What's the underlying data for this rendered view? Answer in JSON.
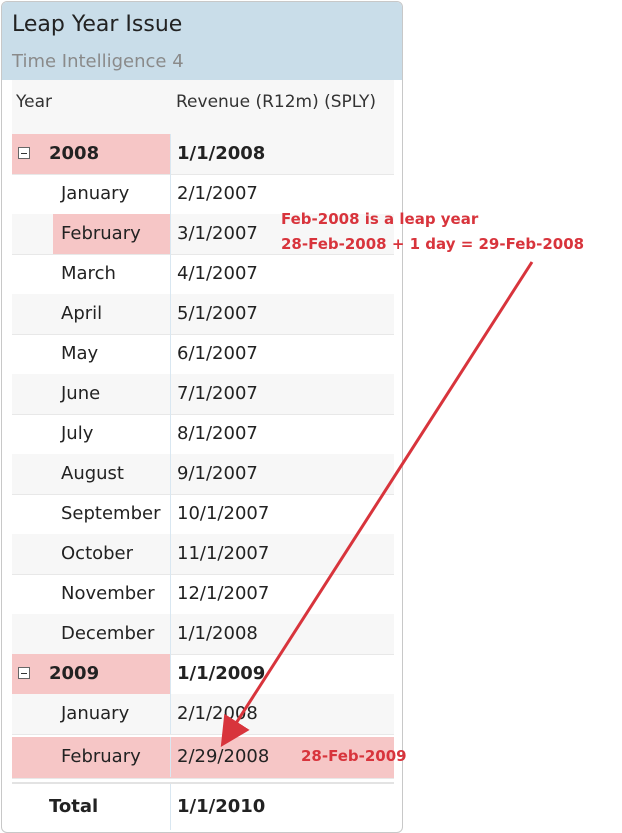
{
  "visual": {
    "title": "Leap Year Issue",
    "subtitle": "Time Intelligence 4"
  },
  "columns": {
    "year": "Year",
    "measure": "Revenue (R12m) (SPLY)"
  },
  "rows": [
    {
      "label": "2008",
      "value": "1/1/2008"
    },
    {
      "label": "January",
      "value": "2/1/2007"
    },
    {
      "label": "February",
      "value": "3/1/2007"
    },
    {
      "label": "March",
      "value": "4/1/2007"
    },
    {
      "label": "April",
      "value": "5/1/2007"
    },
    {
      "label": "May",
      "value": "6/1/2007"
    },
    {
      "label": "June",
      "value": "7/1/2007"
    },
    {
      "label": "July",
      "value": "8/1/2007"
    },
    {
      "label": "August",
      "value": "9/1/2007"
    },
    {
      "label": "September",
      "value": "10/1/2007"
    },
    {
      "label": "October",
      "value": "11/1/2007"
    },
    {
      "label": "November",
      "value": "12/1/2007"
    },
    {
      "label": "December",
      "value": "1/1/2008"
    },
    {
      "label": "2009",
      "value": "1/1/2009"
    },
    {
      "label": "January",
      "value": "2/1/2008"
    },
    {
      "label": "February",
      "value": "2/29/2008"
    },
    {
      "label": "Total",
      "value": "1/1/2010"
    }
  ],
  "annotations": {
    "line1": "Feb-2008 is a leap year",
    "line2": "28-Feb-2008 + 1 day = 29-Feb-2008",
    "correct_value": "28-Feb-2009"
  },
  "colors": {
    "header_bg": "#c9dde9",
    "highlight": "#f6c6c6",
    "annotation": "#d8343c"
  }
}
